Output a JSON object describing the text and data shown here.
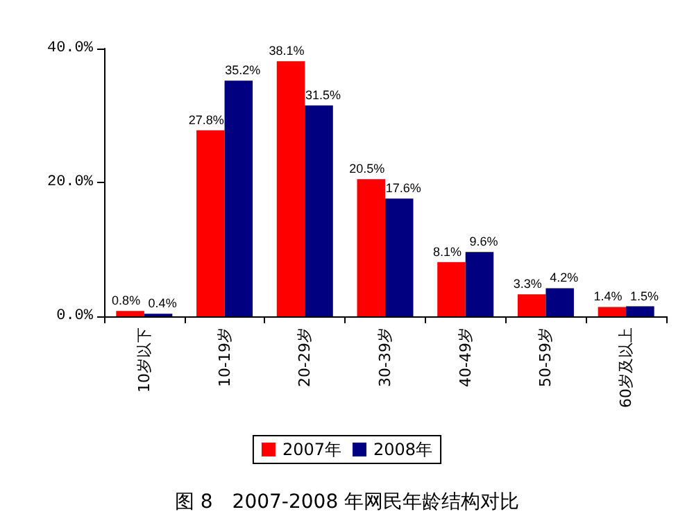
{
  "chart_data": {
    "type": "bar",
    "title": "图 8　2007-2008 年网民年龄结构对比",
    "categories": [
      "10岁以下",
      "10-19岁",
      "20-29岁",
      "30-39岁",
      "40-49岁",
      "50-59岁",
      "60岁及以上"
    ],
    "series": [
      {
        "name": "2007年",
        "color": "#ff0000",
        "values": [
          0.8,
          27.8,
          38.1,
          20.5,
          8.1,
          3.3,
          1.4
        ],
        "value_labels": [
          "0.8%",
          "27.8%",
          "38.1%",
          "20.5%",
          "8.1%",
          "3.3%",
          "1.4%"
        ]
      },
      {
        "name": "2008年",
        "color": "#000080",
        "values": [
          0.4,
          35.2,
          31.5,
          17.6,
          9.6,
          4.2,
          1.5
        ],
        "value_labels": [
          "0.4%",
          "35.2%",
          "31.5%",
          "17.6%",
          "9.6%",
          "4.2%",
          "1.5%"
        ]
      }
    ],
    "ylim": [
      0,
      40
    ],
    "yticks": [
      {
        "value": 0,
        "label": "0.0%"
      },
      {
        "value": 20,
        "label": "20.0%"
      },
      {
        "value": 40,
        "label": "40.0%"
      }
    ],
    "grid": false,
    "legend": "bottom"
  }
}
